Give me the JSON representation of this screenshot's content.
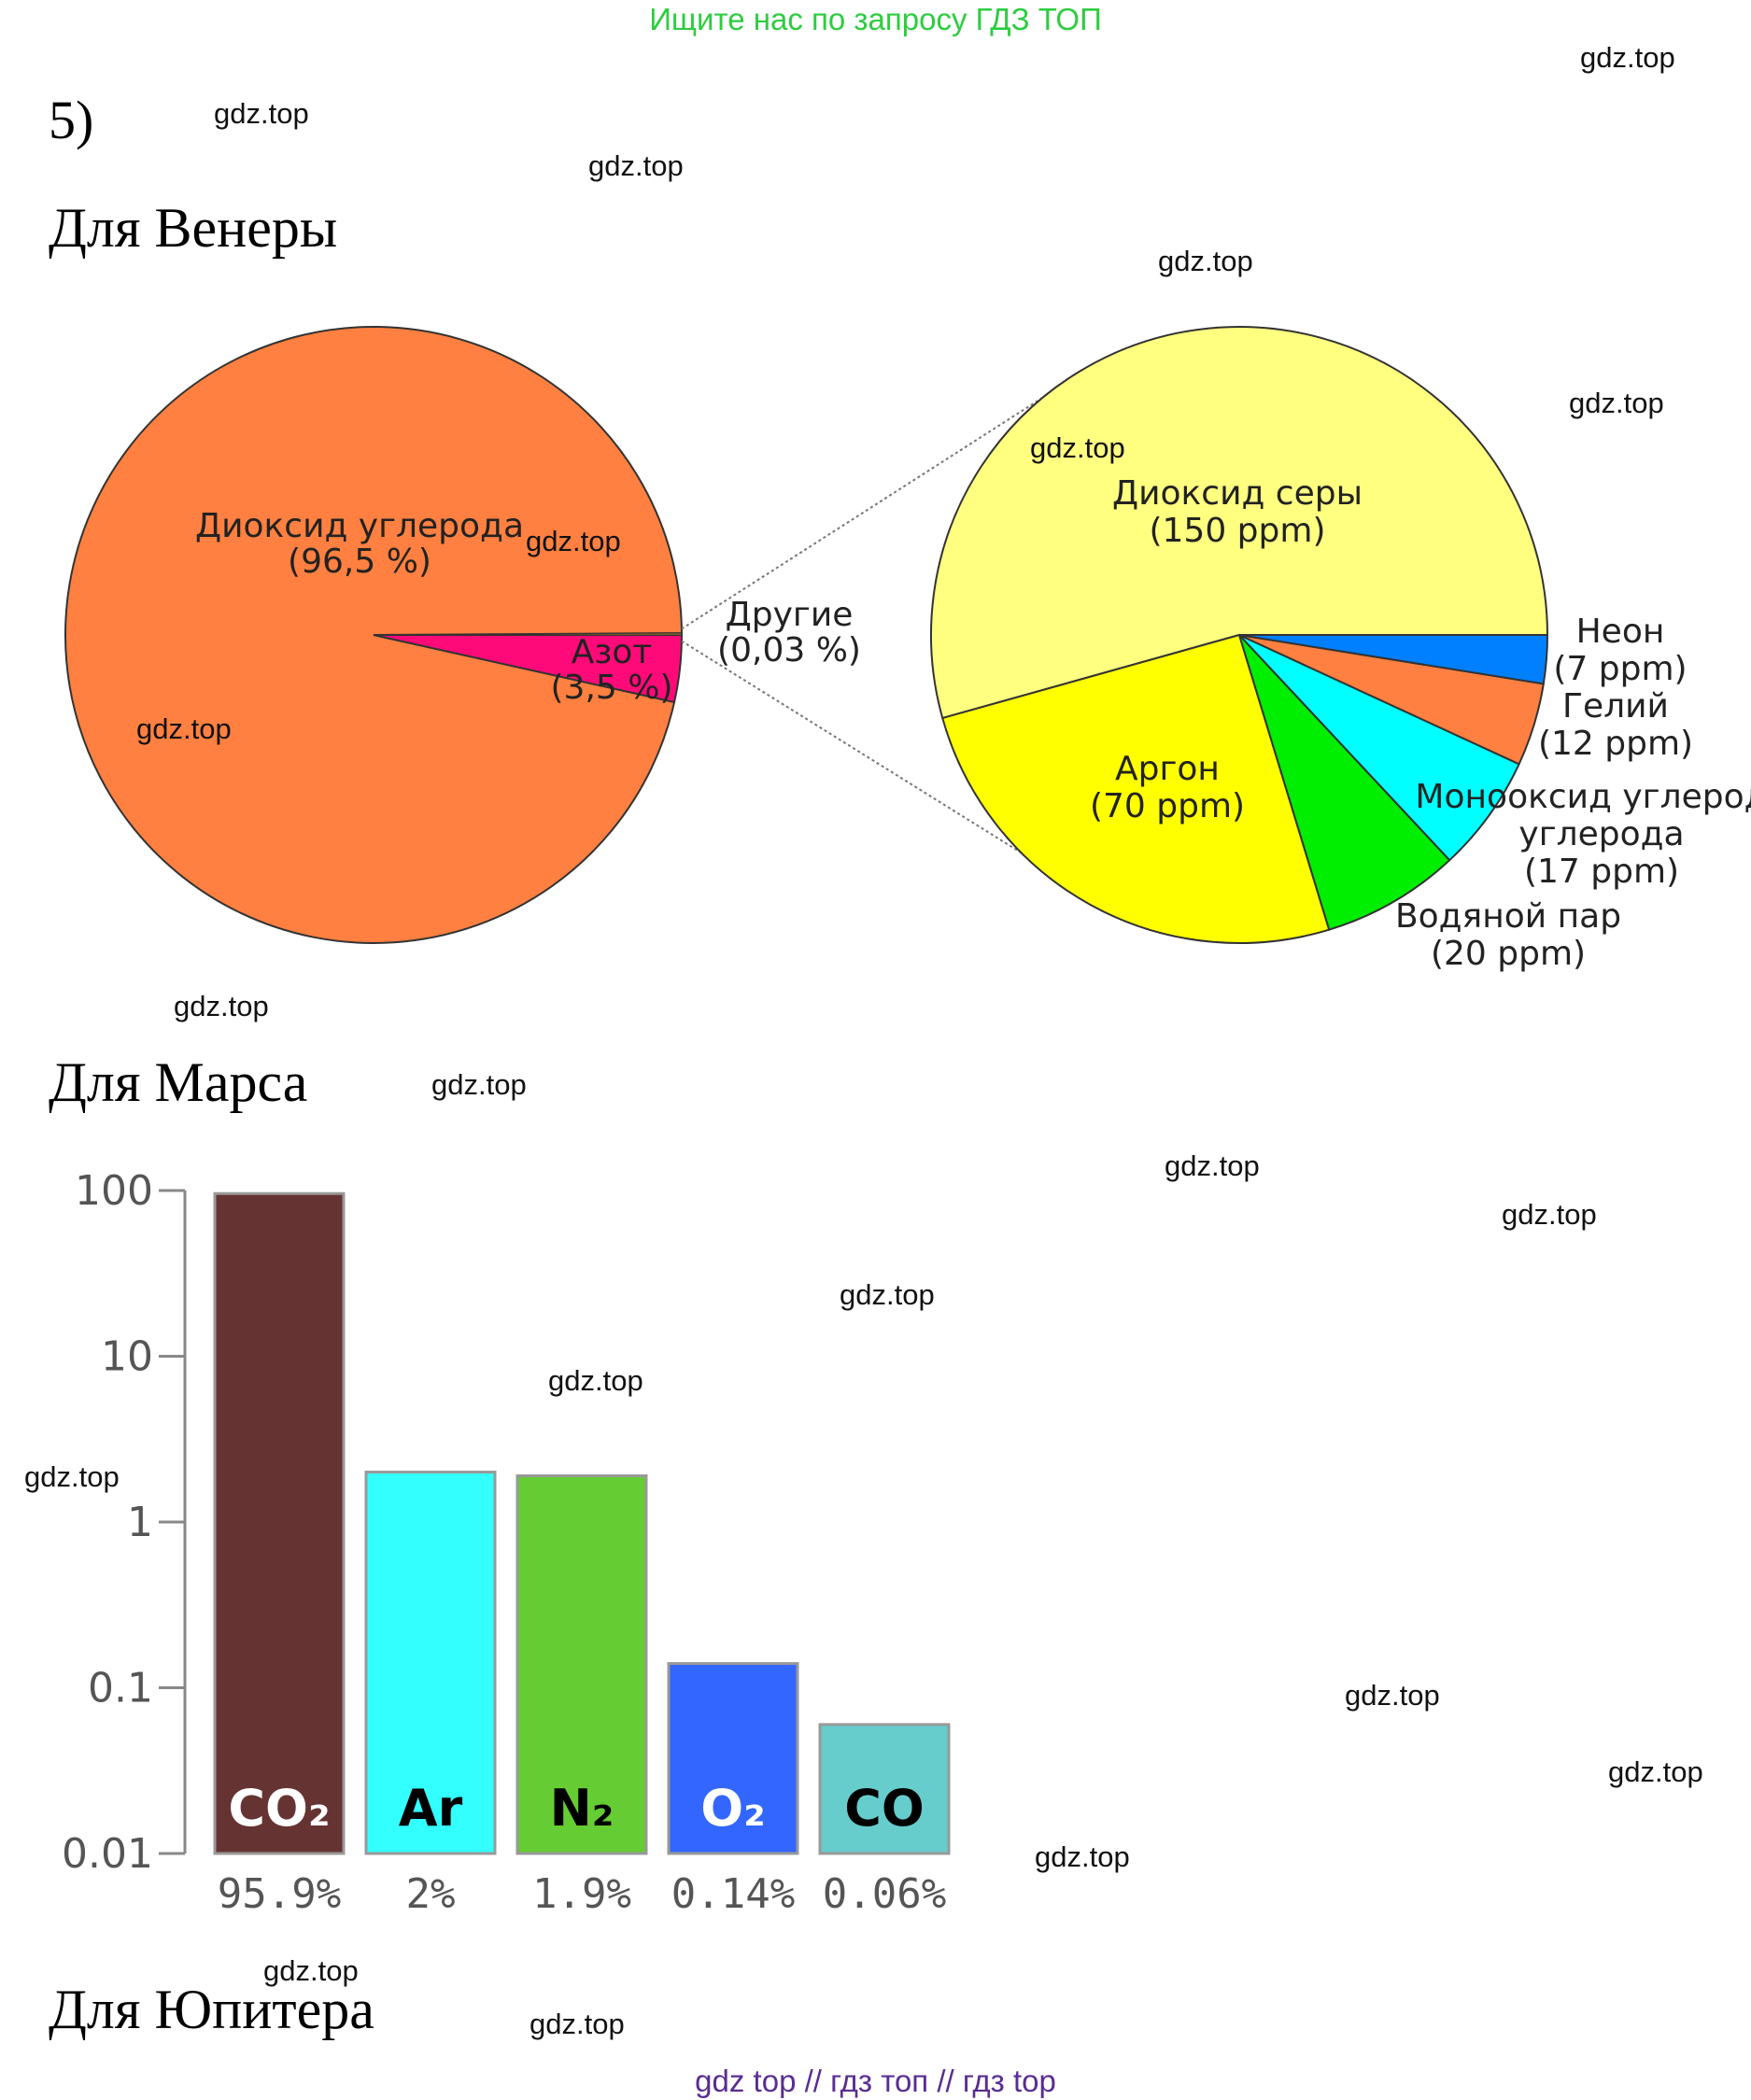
{
  "banner": "Ищите нас по запросу ГДЗ ТОП",
  "problem_number": "5)",
  "watermark": "gdz.top",
  "footer": "gdz top  //  гдз топ  //  гдз top",
  "sections": {
    "venus": "Для Венеры",
    "mars": "Для Марса",
    "jupiter": "Для Юпитера"
  },
  "chart_data": [
    {
      "type": "pie",
      "title": "",
      "slices": [
        {
          "name": "Диоксид углерода",
          "label": "(96,5 %)",
          "value": 96.5,
          "color": "#ff8040"
        },
        {
          "name": "Азот",
          "label": "(3,5 %)",
          "value": 3.5,
          "color": "#ff0a78"
        },
        {
          "name": "Другие",
          "label": "(0,03 %)",
          "value": 0.03,
          "color": "#c08020"
        }
      ]
    },
    {
      "type": "pie",
      "title": "",
      "slices": [
        {
          "name": "Диоксид серы",
          "label": "(150 ppm)",
          "value": 150,
          "color": "#ffff80"
        },
        {
          "name": "Аргон",
          "label": "(70 ppm)",
          "value": 70,
          "color": "#ffff00"
        },
        {
          "name": "Водяной пар",
          "label": "(20 ppm)",
          "value": 20,
          "color": "#00ee00"
        },
        {
          "name": "Монооксид углерода",
          "label": "(17 ppm)",
          "value": 17,
          "color": "#00ffff"
        },
        {
          "name": "Гелий",
          "label": "(12 ppm)",
          "value": 12,
          "color": "#ff8040"
        },
        {
          "name": "Неон",
          "label": "(7 ppm)",
          "value": 7,
          "color": "#0080ff"
        }
      ]
    },
    {
      "type": "bar",
      "yscale": "log",
      "ylim": [
        0.01,
        100
      ],
      "yticks": [
        "100",
        "10",
        "1",
        "0.1",
        "0.01"
      ],
      "categories": [
        "CO₂",
        "Ar",
        "N₂",
        "O₂",
        "CO"
      ],
      "values": [
        95.9,
        2,
        1.9,
        0.14,
        0.06
      ],
      "value_labels": [
        "95.9%",
        "2%",
        "1.9%",
        "0.14%",
        "0.06%"
      ],
      "colors": [
        "#663333",
        "#33ffff",
        "#66cc33",
        "#3366ff",
        "#66cccc"
      ],
      "label_colors": [
        "#ffffff",
        "#000000",
        "#000000",
        "#ffffff",
        "#000000"
      ]
    }
  ]
}
